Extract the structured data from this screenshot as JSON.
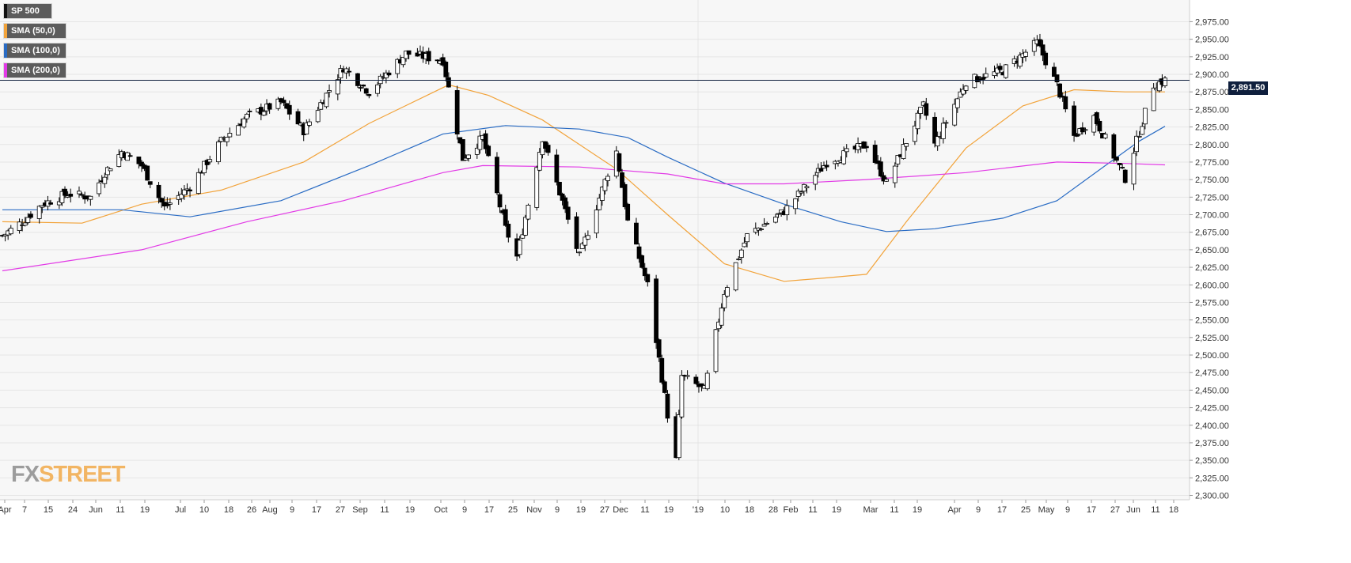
{
  "legend": [
    {
      "label": "SP 500",
      "color": "#111111"
    },
    {
      "label": "SMA (50,0)",
      "color": "#f2a33a"
    },
    {
      "label": "SMA (100,0)",
      "color": "#2a6cc4"
    },
    {
      "label": "SMA (200,0)",
      "color": "#e23ae6"
    }
  ],
  "logo": {
    "fx": "FX",
    "street": "STREET"
  },
  "last_price_label": "2,891.50",
  "colors": {
    "background": "#f7f7f7",
    "grid": "#e6e6e6",
    "price_line": "#0f1f3d",
    "up_candle": "#ffffff",
    "down_candle": "#000000"
  },
  "chart_data": {
    "type": "candlestick",
    "title": "",
    "instrument": "SP 500",
    "ylim": [
      2300,
      2990
    ],
    "y_ticks": [
      "2,975.00",
      "2,950.00",
      "2,925.00",
      "2,900.00",
      "2,875.00",
      "2,850.00",
      "2,825.00",
      "2,800.00",
      "2,775.00",
      "2,750.00",
      "2,725.00",
      "2,700.00",
      "2,675.00",
      "2,650.00",
      "2,625.00",
      "2,600.00",
      "2,575.00",
      "2,550.00",
      "2,525.00",
      "2,500.00",
      "2,475.00",
      "2,450.00",
      "2,425.00",
      "2,400.00",
      "2,375.00",
      "2,350.00",
      "2,325.00",
      "2,300.00"
    ],
    "x_ticks": [
      "Apr",
      "7",
      "15",
      "24",
      "Jun",
      "11",
      "19",
      "Jul",
      "10",
      "18",
      "26",
      "Aug",
      "9",
      "17",
      "27",
      "Sep",
      "11",
      "19",
      "Oct",
      "9",
      "17",
      "25",
      "Nov",
      "9",
      "19",
      "27",
      "Dec",
      "11",
      "19",
      "'19",
      "10",
      "18",
      "28",
      "Feb",
      "11",
      "19",
      "Mar",
      "11",
      "19",
      "Apr",
      "9",
      "17",
      "25",
      "May",
      "9",
      "17",
      "27",
      "Jun",
      "11",
      "18"
    ],
    "last_price": 2891.5,
    "grid": true,
    "legend_position": "top-left",
    "price_anchors": [
      {
        "date": "2018-05-01",
        "close": 2670
      },
      {
        "date": "2018-05-08",
        "close": 2690
      },
      {
        "date": "2018-05-15",
        "close": 2715
      },
      {
        "date": "2018-05-24",
        "close": 2730
      },
      {
        "date": "2018-06-01",
        "close": 2725
      },
      {
        "date": "2018-06-06",
        "close": 2760
      },
      {
        "date": "2018-06-12",
        "close": 2790
      },
      {
        "date": "2018-06-19",
        "close": 2770
      },
      {
        "date": "2018-06-27",
        "close": 2710
      },
      {
        "date": "2018-07-06",
        "close": 2740
      },
      {
        "date": "2018-07-17",
        "close": 2805
      },
      {
        "date": "2018-07-26",
        "close": 2840
      },
      {
        "date": "2018-08-07",
        "close": 2860
      },
      {
        "date": "2018-08-15",
        "close": 2820
      },
      {
        "date": "2018-08-29",
        "close": 2910
      },
      {
        "date": "2018-09-07",
        "close": 2875
      },
      {
        "date": "2018-09-20",
        "close": 2930
      },
      {
        "date": "2018-10-03",
        "close": 2920
      },
      {
        "date": "2018-10-10",
        "close": 2780
      },
      {
        "date": "2018-10-17",
        "close": 2810
      },
      {
        "date": "2018-10-25",
        "close": 2680
      },
      {
        "date": "2018-10-29",
        "close": 2640
      },
      {
        "date": "2018-11-07",
        "close": 2810
      },
      {
        "date": "2018-11-20",
        "close": 2640
      },
      {
        "date": "2018-11-30",
        "close": 2760
      },
      {
        "date": "2018-12-03",
        "close": 2790
      },
      {
        "date": "2018-12-07",
        "close": 2690
      },
      {
        "date": "2018-12-14",
        "close": 2600
      },
      {
        "date": "2018-12-21",
        "close": 2415
      },
      {
        "date": "2018-12-24",
        "close": 2350
      },
      {
        "date": "2018-12-26",
        "close": 2470
      },
      {
        "date": "2019-01-03",
        "close": 2450
      },
      {
        "date": "2019-01-10",
        "close": 2590
      },
      {
        "date": "2019-01-18",
        "close": 2670
      },
      {
        "date": "2019-01-31",
        "close": 2705
      },
      {
        "date": "2019-02-15",
        "close": 2775
      },
      {
        "date": "2019-03-01",
        "close": 2800
      },
      {
        "date": "2019-03-08",
        "close": 2745
      },
      {
        "date": "2019-03-21",
        "close": 2855
      },
      {
        "date": "2019-03-25",
        "close": 2800
      },
      {
        "date": "2019-04-05",
        "close": 2890
      },
      {
        "date": "2019-04-18",
        "close": 2905
      },
      {
        "date": "2019-04-30",
        "close": 2945
      },
      {
        "date": "2019-05-07",
        "close": 2885
      },
      {
        "date": "2019-05-13",
        "close": 2812
      },
      {
        "date": "2019-05-20",
        "close": 2840
      },
      {
        "date": "2019-05-31",
        "close": 2752
      },
      {
        "date": "2019-06-04",
        "close": 2805
      },
      {
        "date": "2019-06-10",
        "close": 2885
      },
      {
        "date": "2019-06-14",
        "close": 2891.5
      }
    ],
    "series": [
      {
        "name": "SMA (50,0)",
        "color": "#f2a33a",
        "points": [
          {
            "date": "2018-05-01",
            "value": 2690
          },
          {
            "date": "2018-05-29",
            "value": 2688
          },
          {
            "date": "2018-06-19",
            "value": 2715
          },
          {
            "date": "2018-07-17",
            "value": 2735
          },
          {
            "date": "2018-08-15",
            "value": 2775
          },
          {
            "date": "2018-09-07",
            "value": 2830
          },
          {
            "date": "2018-10-05",
            "value": 2885
          },
          {
            "date": "2018-10-19",
            "value": 2870
          },
          {
            "date": "2018-11-07",
            "value": 2835
          },
          {
            "date": "2018-12-03",
            "value": 2765
          },
          {
            "date": "2018-12-21",
            "value": 2700
          },
          {
            "date": "2019-01-10",
            "value": 2630
          },
          {
            "date": "2019-01-31",
            "value": 2605
          },
          {
            "date": "2019-02-15",
            "value": 2610
          },
          {
            "date": "2019-03-01",
            "value": 2615
          },
          {
            "date": "2019-03-15",
            "value": 2690
          },
          {
            "date": "2019-04-05",
            "value": 2795
          },
          {
            "date": "2019-04-25",
            "value": 2855
          },
          {
            "date": "2019-05-13",
            "value": 2878
          },
          {
            "date": "2019-05-31",
            "value": 2875
          },
          {
            "date": "2019-06-14",
            "value": 2875
          }
        ]
      },
      {
        "name": "SMA (100,0)",
        "color": "#2a6cc4",
        "points": [
          {
            "date": "2018-05-01",
            "value": 2707
          },
          {
            "date": "2018-06-12",
            "value": 2707
          },
          {
            "date": "2018-07-06",
            "value": 2697
          },
          {
            "date": "2018-08-07",
            "value": 2720
          },
          {
            "date": "2018-09-07",
            "value": 2770
          },
          {
            "date": "2018-10-03",
            "value": 2815
          },
          {
            "date": "2018-10-25",
            "value": 2827
          },
          {
            "date": "2018-11-20",
            "value": 2822
          },
          {
            "date": "2018-12-07",
            "value": 2810
          },
          {
            "date": "2018-12-21",
            "value": 2782
          },
          {
            "date": "2019-01-10",
            "value": 2745
          },
          {
            "date": "2019-01-31",
            "value": 2715
          },
          {
            "date": "2019-02-20",
            "value": 2690
          },
          {
            "date": "2019-03-08",
            "value": 2676
          },
          {
            "date": "2019-03-25",
            "value": 2680
          },
          {
            "date": "2019-04-18",
            "value": 2695
          },
          {
            "date": "2019-05-07",
            "value": 2720
          },
          {
            "date": "2019-05-24",
            "value": 2770
          },
          {
            "date": "2019-06-05",
            "value": 2805
          },
          {
            "date": "2019-06-14",
            "value": 2826
          }
        ]
      },
      {
        "name": "SMA (200,0)",
        "color": "#e23ae6",
        "points": [
          {
            "date": "2018-05-01",
            "value": 2620
          },
          {
            "date": "2018-06-19",
            "value": 2650
          },
          {
            "date": "2018-07-26",
            "value": 2690
          },
          {
            "date": "2018-08-29",
            "value": 2720
          },
          {
            "date": "2018-10-03",
            "value": 2760
          },
          {
            "date": "2018-10-17",
            "value": 2770
          },
          {
            "date": "2018-11-20",
            "value": 2768
          },
          {
            "date": "2018-12-21",
            "value": 2758
          },
          {
            "date": "2019-01-10",
            "value": 2744
          },
          {
            "date": "2019-01-31",
            "value": 2744
          },
          {
            "date": "2019-03-01",
            "value": 2750
          },
          {
            "date": "2019-04-05",
            "value": 2760
          },
          {
            "date": "2019-05-07",
            "value": 2775
          },
          {
            "date": "2019-05-31",
            "value": 2773
          },
          {
            "date": "2019-06-14",
            "value": 2771
          }
        ]
      }
    ]
  }
}
